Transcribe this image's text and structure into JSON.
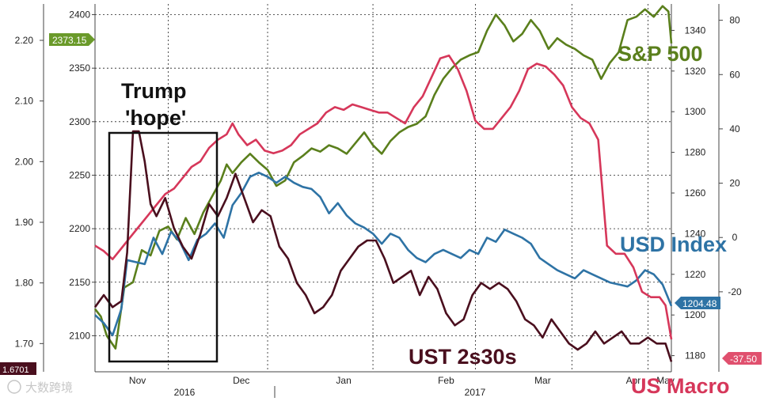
{
  "chart_data": {
    "type": "line",
    "x_labels": [
      "Nov",
      "Dec",
      "Jan",
      "Feb",
      "Mar",
      "Apr",
      "May"
    ],
    "x_years": [
      "2016",
      "2017"
    ],
    "axes": {
      "ust_2s30s": {
        "ticks": [
          "2.20",
          "2.10",
          "2.00",
          "1.90",
          "1.80",
          "1.70"
        ],
        "ylim": [
          1.66,
          2.26
        ]
      },
      "sp500": {
        "ticks": [
          "2400",
          "2350",
          "2300",
          "2250",
          "2200",
          "2150",
          "2100"
        ],
        "ylim": [
          2070,
          2410
        ]
      },
      "usd_index": {
        "ticks": [
          "1340",
          "1320",
          "1300",
          "1280",
          "1260",
          "1240",
          "1220",
          "1200",
          "1180"
        ],
        "ylim": [
          1174,
          1353
        ]
      },
      "us_macro": {
        "ticks": [
          "80",
          "60",
          "40",
          "20",
          "0",
          "-20"
        ],
        "ylim": [
          -48,
          86
        ]
      }
    },
    "value_tags": {
      "sp500_last": "2373.15",
      "usd_last": "1204.48",
      "macro_last": "-37.50",
      "ust_last": "1.6701"
    },
    "annotations": {
      "box_line1": "Trump",
      "box_line2": "'hope'"
    },
    "colors": {
      "sp500": "#5a7f1c",
      "usd_index": "#2e73a5",
      "us_macro": "#d6375a",
      "ust_2s30s": "#4a0f1e"
    },
    "series": [
      {
        "name": "S&P 500",
        "axis": "sp500",
        "color": "#5a7f1c",
        "points": [
          [
            0,
            2125
          ],
          [
            2,
            2118
          ],
          [
            4,
            2100
          ],
          [
            7,
            2088
          ],
          [
            10,
            2145
          ],
          [
            13,
            2150
          ],
          [
            16,
            2180
          ],
          [
            19,
            2175
          ],
          [
            22,
            2198
          ],
          [
            25,
            2202
          ],
          [
            28,
            2190
          ],
          [
            31,
            2210
          ],
          [
            34,
            2195
          ],
          [
            37,
            2215
          ],
          [
            40,
            2230
          ],
          [
            43,
            2245
          ],
          [
            45,
            2260
          ],
          [
            47,
            2252
          ],
          [
            50,
            2262
          ],
          [
            53,
            2270
          ],
          [
            56,
            2262
          ],
          [
            59,
            2255
          ],
          [
            62,
            2240
          ],
          [
            65,
            2245
          ],
          [
            68,
            2262
          ],
          [
            71,
            2268
          ],
          [
            74,
            2275
          ],
          [
            77,
            2272
          ],
          [
            80,
            2278
          ],
          [
            83,
            2275
          ],
          [
            86,
            2270
          ],
          [
            89,
            2280
          ],
          [
            92,
            2290
          ],
          [
            95,
            2278
          ],
          [
            98,
            2270
          ],
          [
            101,
            2282
          ],
          [
            104,
            2290
          ],
          [
            107,
            2295
          ],
          [
            110,
            2298
          ],
          [
            113,
            2305
          ],
          [
            116,
            2325
          ],
          [
            119,
            2340
          ],
          [
            122,
            2350
          ],
          [
            125,
            2358
          ],
          [
            128,
            2362
          ],
          [
            131,
            2365
          ],
          [
            134,
            2385
          ],
          [
            137,
            2400
          ],
          [
            140,
            2390
          ],
          [
            143,
            2375
          ],
          [
            146,
            2382
          ],
          [
            149,
            2395
          ],
          [
            152,
            2385
          ],
          [
            155,
            2368
          ],
          [
            158,
            2378
          ],
          [
            161,
            2372
          ],
          [
            164,
            2368
          ],
          [
            167,
            2362
          ],
          [
            170,
            2358
          ],
          [
            173,
            2340
          ],
          [
            176,
            2355
          ],
          [
            179,
            2365
          ],
          [
            182,
            2395
          ],
          [
            185,
            2398
          ],
          [
            188,
            2405
          ],
          [
            191,
            2398
          ],
          [
            194,
            2408
          ],
          [
            196,
            2403
          ],
          [
            197,
            2373.15
          ]
        ]
      },
      {
        "name": "USD Index",
        "axis": "usd_index",
        "color": "#2e73a5",
        "points": [
          [
            0,
            1200
          ],
          [
            3,
            1196
          ],
          [
            6,
            1190
          ],
          [
            9,
            1203
          ],
          [
            11,
            1227
          ],
          [
            14,
            1226
          ],
          [
            17,
            1225
          ],
          [
            20,
            1238
          ],
          [
            23,
            1230
          ],
          [
            26,
            1241
          ],
          [
            29,
            1236
          ],
          [
            32,
            1227
          ],
          [
            35,
            1237
          ],
          [
            38,
            1240
          ],
          [
            41,
            1245
          ],
          [
            44,
            1238
          ],
          [
            47,
            1254
          ],
          [
            50,
            1260
          ],
          [
            53,
            1268
          ],
          [
            56,
            1270
          ],
          [
            59,
            1268
          ],
          [
            62,
            1265
          ],
          [
            65,
            1268
          ],
          [
            68,
            1265
          ],
          [
            71,
            1263
          ],
          [
            74,
            1262
          ],
          [
            77,
            1258
          ],
          [
            80,
            1250
          ],
          [
            83,
            1255
          ],
          [
            86,
            1249
          ],
          [
            89,
            1245
          ],
          [
            92,
            1243
          ],
          [
            95,
            1240
          ],
          [
            98,
            1235
          ],
          [
            101,
            1240
          ],
          [
            104,
            1238
          ],
          [
            107,
            1232
          ],
          [
            110,
            1228
          ],
          [
            113,
            1226
          ],
          [
            116,
            1230
          ],
          [
            119,
            1232
          ],
          [
            122,
            1230
          ],
          [
            125,
            1228
          ],
          [
            128,
            1232
          ],
          [
            131,
            1230
          ],
          [
            134,
            1238
          ],
          [
            137,
            1236
          ],
          [
            140,
            1242
          ],
          [
            143,
            1240
          ],
          [
            146,
            1238
          ],
          [
            149,
            1235
          ],
          [
            152,
            1228
          ],
          [
            155,
            1225
          ],
          [
            158,
            1222
          ],
          [
            161,
            1220
          ],
          [
            164,
            1218
          ],
          [
            167,
            1222
          ],
          [
            170,
            1220
          ],
          [
            173,
            1218
          ],
          [
            176,
            1216
          ],
          [
            179,
            1215
          ],
          [
            182,
            1214
          ],
          [
            185,
            1217
          ],
          [
            188,
            1222
          ],
          [
            191,
            1220
          ],
          [
            194,
            1215
          ],
          [
            196,
            1208
          ],
          [
            197,
            1204.48
          ]
        ]
      },
      {
        "name": "US Macro",
        "axis": "us_macro",
        "color": "#d6375a",
        "points": [
          [
            0,
            -3
          ],
          [
            3,
            -5
          ],
          [
            6,
            -8
          ],
          [
            9,
            -4
          ],
          [
            12,
            0
          ],
          [
            15,
            4
          ],
          [
            18,
            8
          ],
          [
            21,
            12
          ],
          [
            24,
            16
          ],
          [
            27,
            18
          ],
          [
            30,
            22
          ],
          [
            33,
            26
          ],
          [
            36,
            28
          ],
          [
            39,
            33
          ],
          [
            42,
            36
          ],
          [
            45,
            38
          ],
          [
            47,
            42
          ],
          [
            49,
            38
          ],
          [
            52,
            34
          ],
          [
            55,
            36
          ],
          [
            58,
            32
          ],
          [
            61,
            31
          ],
          [
            64,
            32
          ],
          [
            67,
            34
          ],
          [
            70,
            38
          ],
          [
            73,
            40
          ],
          [
            76,
            42
          ],
          [
            79,
            46
          ],
          [
            82,
            48
          ],
          [
            85,
            47
          ],
          [
            88,
            49
          ],
          [
            91,
            48
          ],
          [
            94,
            47
          ],
          [
            97,
            46
          ],
          [
            100,
            46
          ],
          [
            103,
            44
          ],
          [
            106,
            42
          ],
          [
            109,
            48
          ],
          [
            112,
            52
          ],
          [
            115,
            59
          ],
          [
            118,
            66
          ],
          [
            121,
            67
          ],
          [
            124,
            62
          ],
          [
            127,
            54
          ],
          [
            130,
            43
          ],
          [
            133,
            40
          ],
          [
            136,
            40
          ],
          [
            139,
            44
          ],
          [
            142,
            48
          ],
          [
            145,
            54
          ],
          [
            148,
            62
          ],
          [
            151,
            64
          ],
          [
            154,
            63
          ],
          [
            157,
            60
          ],
          [
            160,
            56
          ],
          [
            163,
            48
          ],
          [
            166,
            44
          ],
          [
            169,
            42
          ],
          [
            172,
            36
          ],
          [
            175,
            -3
          ],
          [
            178,
            -6
          ],
          [
            181,
            -6
          ],
          [
            184,
            -11
          ],
          [
            187,
            -20
          ],
          [
            190,
            -22
          ],
          [
            193,
            -22
          ],
          [
            195,
            -25
          ],
          [
            197,
            -37.5
          ]
        ]
      },
      {
        "name": "UST 2s30s",
        "axis": "ust_2s30s",
        "color": "#4a0f1e",
        "points": [
          [
            0,
            1.76
          ],
          [
            3,
            1.78
          ],
          [
            6,
            1.76
          ],
          [
            9,
            1.77
          ],
          [
            11,
            1.85
          ],
          [
            13,
            2.05
          ],
          [
            15,
            2.05
          ],
          [
            17,
            2.0
          ],
          [
            19,
            1.93
          ],
          [
            21,
            1.91
          ],
          [
            24,
            1.94
          ],
          [
            27,
            1.89
          ],
          [
            30,
            1.86
          ],
          [
            33,
            1.84
          ],
          [
            36,
            1.88
          ],
          [
            39,
            1.93
          ],
          [
            42,
            1.91
          ],
          [
            45,
            1.94
          ],
          [
            48,
            1.98
          ],
          [
            51,
            1.94
          ],
          [
            54,
            1.9
          ],
          [
            57,
            1.92
          ],
          [
            60,
            1.91
          ],
          [
            63,
            1.86
          ],
          [
            66,
            1.84
          ],
          [
            69,
            1.8
          ],
          [
            72,
            1.78
          ],
          [
            75,
            1.75
          ],
          [
            78,
            1.76
          ],
          [
            81,
            1.78
          ],
          [
            84,
            1.82
          ],
          [
            87,
            1.84
          ],
          [
            90,
            1.86
          ],
          [
            93,
            1.87
          ],
          [
            96,
            1.87
          ],
          [
            99,
            1.84
          ],
          [
            102,
            1.8
          ],
          [
            105,
            1.81
          ],
          [
            108,
            1.82
          ],
          [
            111,
            1.78
          ],
          [
            114,
            1.81
          ],
          [
            117,
            1.79
          ],
          [
            120,
            1.75
          ],
          [
            123,
            1.73
          ],
          [
            126,
            1.74
          ],
          [
            129,
            1.78
          ],
          [
            132,
            1.8
          ],
          [
            135,
            1.79
          ],
          [
            138,
            1.8
          ],
          [
            141,
            1.79
          ],
          [
            144,
            1.77
          ],
          [
            147,
            1.74
          ],
          [
            150,
            1.73
          ],
          [
            153,
            1.71
          ],
          [
            156,
            1.74
          ],
          [
            159,
            1.72
          ],
          [
            162,
            1.7
          ],
          [
            165,
            1.69
          ],
          [
            168,
            1.7
          ],
          [
            171,
            1.72
          ],
          [
            174,
            1.7
          ],
          [
            177,
            1.71
          ],
          [
            180,
            1.72
          ],
          [
            183,
            1.7
          ],
          [
            186,
            1.7
          ],
          [
            189,
            1.71
          ],
          [
            192,
            1.7
          ],
          [
            195,
            1.7
          ],
          [
            197,
            1.6701
          ]
        ]
      }
    ]
  },
  "watermark": "大数跨境"
}
